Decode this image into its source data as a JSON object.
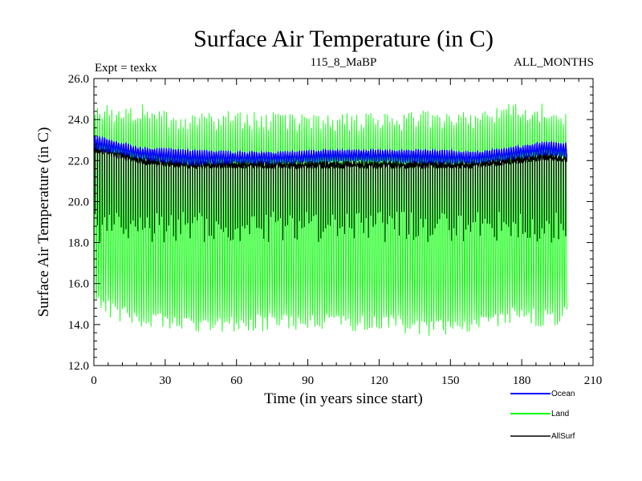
{
  "chart_data": {
    "type": "line",
    "title": "Surface Air Temperature (in C)",
    "subtitle_left": "Expt = texkx",
    "subtitle_center": "115_8_MaBP",
    "subtitle_right": "ALL_MONTHS",
    "xlabel": "Time (in years since start)",
    "ylabel": "Surface Air Temperature (in C)",
    "xlim": [
      0,
      210
    ],
    "ylim": [
      12.0,
      26.0
    ],
    "x_ticks": [
      0,
      30,
      60,
      90,
      120,
      150,
      180,
      210
    ],
    "y_ticks": [
      12.0,
      14.0,
      16.0,
      18.0,
      20.0,
      22.0,
      24.0,
      26.0
    ],
    "x_tick_labels": [
      "0",
      "30",
      "60",
      "90",
      "120",
      "150",
      "180",
      "210"
    ],
    "y_tick_labels": [
      "12.0",
      "14.0",
      "16.0",
      "18.0",
      "20.0",
      "22.0",
      "24.0",
      "26.0"
    ],
    "legend_position": "bottom-right",
    "series": [
      {
        "name": "Ocean",
        "color": "#0000ff",
        "seasonal_min": [
          22.6,
          22.1,
          21.8,
          21.9,
          21.9,
          22.0,
          22.0,
          21.9,
          21.9,
          22.1,
          22.3,
          22.2
        ],
        "seasonal_max": [
          23.2,
          22.6,
          22.5,
          22.4,
          22.4,
          22.5,
          22.5,
          22.5,
          22.4,
          22.6,
          22.9,
          22.8
        ],
        "anchor_years": [
          0,
          20,
          40,
          60,
          80,
          100,
          120,
          140,
          160,
          175,
          190,
          199
        ]
      },
      {
        "name": "Land",
        "color": "#00ff00",
        "seasonal_min": [
          15.0,
          14.2,
          14.0,
          14.0,
          14.2,
          14.1,
          14.1,
          13.8,
          14.0,
          14.4,
          14.3,
          14.5
        ],
        "seasonal_max": [
          24.4,
          24.3,
          23.8,
          24.0,
          23.9,
          23.9,
          23.9,
          24.0,
          23.9,
          24.5,
          24.3,
          23.8
        ],
        "anchor_years": [
          0,
          20,
          40,
          60,
          80,
          100,
          120,
          140,
          160,
          175,
          190,
          199
        ]
      },
      {
        "name": "AllSurf",
        "color": "#000000",
        "seasonal_min": [
          18.0,
          18.0,
          18.0,
          18.0,
          18.0,
          18.0,
          18.0,
          18.0,
          18.0,
          18.0,
          18.0,
          18.0
        ],
        "seasonal_max": [
          22.8,
          22.2,
          22.0,
          22.0,
          22.0,
          22.0,
          22.0,
          22.0,
          22.0,
          22.2,
          22.4,
          22.3
        ],
        "anchor_years": [
          0,
          20,
          40,
          60,
          80,
          100,
          120,
          140,
          160,
          175,
          190,
          199
        ]
      }
    ],
    "years": 199
  }
}
